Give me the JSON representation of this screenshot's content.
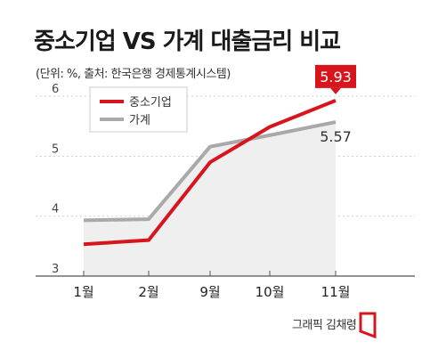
{
  "title": "중소기업 VS 가계 대출금리 비교",
  "source_note": "(단위: %, 출처: 한국은행 경제통계시스템)",
  "credit": "그래픽 김채령",
  "colors": {
    "sme": "#d8151c",
    "household": "#a9a9a9",
    "area": "#efefef",
    "grid": "#cfcfcf"
  },
  "chart_data": {
    "type": "line",
    "categories": [
      "1월",
      "2월",
      "9월",
      "10월",
      "11월"
    ],
    "ylim": [
      3,
      6.3
    ],
    "yticks": [
      3,
      4,
      5,
      6
    ],
    "grid": true,
    "legend_position": "top-left",
    "series": [
      {
        "name": "중소기업",
        "values": [
          3.53,
          3.6,
          4.9,
          5.49,
          5.93
        ],
        "label_last": "5.93"
      },
      {
        "name": "가계",
        "values": [
          3.93,
          3.95,
          5.16,
          5.35,
          5.57
        ],
        "label_last": "5.57"
      }
    ]
  }
}
